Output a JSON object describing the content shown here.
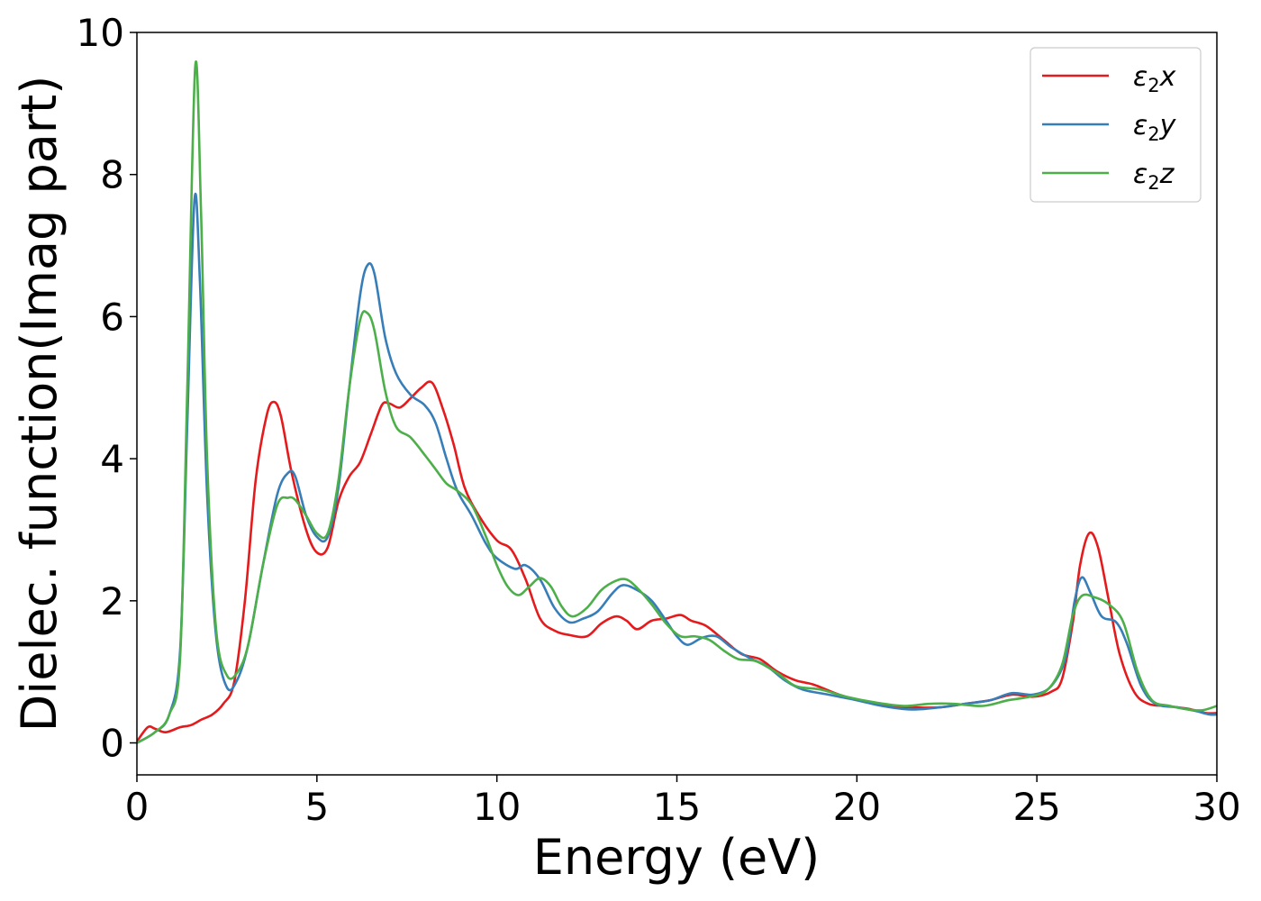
{
  "chart_data": {
    "type": "line",
    "xlabel": "Energy (eV)",
    "ylabel": "Dielec. function(Imag part)",
    "xlim": [
      0,
      30
    ],
    "ylim": [
      -0.45,
      10
    ],
    "xticks": [
      0,
      5,
      10,
      15,
      20,
      25,
      30
    ],
    "yticks": [
      0,
      2,
      4,
      6,
      8,
      10
    ],
    "grid": false,
    "legend_position": "top-right",
    "series": [
      {
        "name": "ε2x",
        "legend": {
          "base": "ε",
          "sub": "2",
          "suffix": "x"
        },
        "color": "#e41a1c",
        "points": [
          [
            0,
            0.02
          ],
          [
            0.3,
            0.22
          ],
          [
            0.5,
            0.2
          ],
          [
            0.8,
            0.15
          ],
          [
            1.2,
            0.22
          ],
          [
            1.5,
            0.25
          ],
          [
            1.8,
            0.33
          ],
          [
            2.1,
            0.4
          ],
          [
            2.4,
            0.55
          ],
          [
            2.7,
            0.85
          ],
          [
            3.0,
            2.0
          ],
          [
            3.3,
            3.7
          ],
          [
            3.6,
            4.6
          ],
          [
            3.8,
            4.8
          ],
          [
            4.0,
            4.6
          ],
          [
            4.3,
            3.8
          ],
          [
            4.7,
            3.0
          ],
          [
            5.0,
            2.68
          ],
          [
            5.3,
            2.75
          ],
          [
            5.6,
            3.4
          ],
          [
            5.9,
            3.75
          ],
          [
            6.2,
            3.95
          ],
          [
            6.5,
            4.35
          ],
          [
            6.8,
            4.75
          ],
          [
            7.0,
            4.78
          ],
          [
            7.3,
            4.72
          ],
          [
            7.6,
            4.85
          ],
          [
            7.9,
            5.0
          ],
          [
            8.2,
            5.07
          ],
          [
            8.5,
            4.7
          ],
          [
            8.8,
            4.2
          ],
          [
            9.1,
            3.6
          ],
          [
            9.5,
            3.2
          ],
          [
            10.0,
            2.85
          ],
          [
            10.4,
            2.72
          ],
          [
            10.8,
            2.3
          ],
          [
            11.2,
            1.75
          ],
          [
            11.6,
            1.58
          ],
          [
            12.0,
            1.52
          ],
          [
            12.5,
            1.5
          ],
          [
            12.9,
            1.68
          ],
          [
            13.3,
            1.78
          ],
          [
            13.6,
            1.72
          ],
          [
            13.9,
            1.6
          ],
          [
            14.3,
            1.72
          ],
          [
            14.7,
            1.75
          ],
          [
            15.1,
            1.8
          ],
          [
            15.4,
            1.72
          ],
          [
            15.8,
            1.65
          ],
          [
            16.3,
            1.45
          ],
          [
            16.8,
            1.25
          ],
          [
            17.3,
            1.18
          ],
          [
            17.8,
            1.0
          ],
          [
            18.3,
            0.88
          ],
          [
            18.8,
            0.82
          ],
          [
            19.5,
            0.68
          ],
          [
            20.2,
            0.58
          ],
          [
            21.0,
            0.52
          ],
          [
            21.5,
            0.5
          ],
          [
            22.3,
            0.5
          ],
          [
            23.0,
            0.55
          ],
          [
            23.7,
            0.6
          ],
          [
            24.3,
            0.68
          ],
          [
            24.9,
            0.65
          ],
          [
            25.4,
            0.72
          ],
          [
            25.7,
            0.9
          ],
          [
            26.0,
            1.7
          ],
          [
            26.2,
            2.5
          ],
          [
            26.45,
            2.95
          ],
          [
            26.7,
            2.75
          ],
          [
            27.0,
            2.0
          ],
          [
            27.3,
            1.25
          ],
          [
            27.7,
            0.72
          ],
          [
            28.1,
            0.55
          ],
          [
            28.6,
            0.52
          ],
          [
            29.2,
            0.48
          ],
          [
            29.7,
            0.42
          ],
          [
            30.0,
            0.42
          ]
        ]
      },
      {
        "name": "ε2y",
        "legend": {
          "base": "ε",
          "sub": "2",
          "suffix": "y"
        },
        "color": "#377eb8",
        "points": [
          [
            0,
            0.0
          ],
          [
            0.5,
            0.15
          ],
          [
            0.9,
            0.4
          ],
          [
            1.2,
            1.3
          ],
          [
            1.4,
            4.5
          ],
          [
            1.6,
            7.65
          ],
          [
            1.75,
            6.5
          ],
          [
            1.95,
            3.5
          ],
          [
            2.2,
            1.5
          ],
          [
            2.5,
            0.78
          ],
          [
            2.8,
            0.9
          ],
          [
            3.1,
            1.4
          ],
          [
            3.5,
            2.5
          ],
          [
            3.9,
            3.5
          ],
          [
            4.2,
            3.8
          ],
          [
            4.4,
            3.75
          ],
          [
            4.7,
            3.2
          ],
          [
            5.0,
            2.9
          ],
          [
            5.3,
            2.9
          ],
          [
            5.6,
            3.6
          ],
          [
            5.9,
            5.0
          ],
          [
            6.2,
            6.3
          ],
          [
            6.4,
            6.72
          ],
          [
            6.6,
            6.6
          ],
          [
            6.9,
            5.7
          ],
          [
            7.2,
            5.2
          ],
          [
            7.6,
            4.9
          ],
          [
            8.0,
            4.75
          ],
          [
            8.3,
            4.5
          ],
          [
            8.6,
            4.0
          ],
          [
            8.9,
            3.55
          ],
          [
            9.3,
            3.2
          ],
          [
            9.7,
            2.8
          ],
          [
            10.0,
            2.6
          ],
          [
            10.5,
            2.45
          ],
          [
            10.8,
            2.5
          ],
          [
            11.2,
            2.3
          ],
          [
            11.6,
            1.9
          ],
          [
            12.0,
            1.7
          ],
          [
            12.4,
            1.75
          ],
          [
            12.8,
            1.85
          ],
          [
            13.2,
            2.1
          ],
          [
            13.5,
            2.22
          ],
          [
            13.9,
            2.15
          ],
          [
            14.3,
            2.0
          ],
          [
            14.7,
            1.72
          ],
          [
            15.0,
            1.5
          ],
          [
            15.3,
            1.38
          ],
          [
            15.7,
            1.48
          ],
          [
            16.1,
            1.5
          ],
          [
            16.5,
            1.35
          ],
          [
            17.0,
            1.2
          ],
          [
            17.5,
            1.08
          ],
          [
            18.0,
            0.88
          ],
          [
            18.5,
            0.75
          ],
          [
            19.2,
            0.68
          ],
          [
            20.0,
            0.6
          ],
          [
            20.7,
            0.52
          ],
          [
            21.5,
            0.47
          ],
          [
            22.3,
            0.5
          ],
          [
            23.0,
            0.55
          ],
          [
            23.7,
            0.6
          ],
          [
            24.3,
            0.7
          ],
          [
            24.9,
            0.68
          ],
          [
            25.4,
            0.8
          ],
          [
            25.8,
            1.2
          ],
          [
            26.05,
            2.0
          ],
          [
            26.25,
            2.33
          ],
          [
            26.5,
            2.1
          ],
          [
            26.8,
            1.78
          ],
          [
            27.2,
            1.7
          ],
          [
            27.5,
            1.4
          ],
          [
            27.9,
            0.8
          ],
          [
            28.3,
            0.55
          ],
          [
            28.9,
            0.5
          ],
          [
            29.4,
            0.45
          ],
          [
            29.8,
            0.4
          ],
          [
            30.0,
            0.4
          ]
        ]
      },
      {
        "name": "ε2z",
        "legend": {
          "base": "ε",
          "sub": "2",
          "suffix": "z"
        },
        "color": "#4daf4a",
        "points": [
          [
            0,
            0.0
          ],
          [
            0.5,
            0.15
          ],
          [
            0.9,
            0.4
          ],
          [
            1.2,
            1.2
          ],
          [
            1.4,
            5.0
          ],
          [
            1.62,
            9.52
          ],
          [
            1.78,
            7.5
          ],
          [
            1.95,
            4.0
          ],
          [
            2.2,
            1.6
          ],
          [
            2.5,
            0.95
          ],
          [
            2.8,
            1.0
          ],
          [
            3.1,
            1.4
          ],
          [
            3.5,
            2.5
          ],
          [
            3.9,
            3.35
          ],
          [
            4.2,
            3.45
          ],
          [
            4.4,
            3.42
          ],
          [
            4.7,
            3.2
          ],
          [
            5.0,
            2.95
          ],
          [
            5.3,
            2.95
          ],
          [
            5.6,
            3.7
          ],
          [
            5.9,
            5.0
          ],
          [
            6.2,
            5.95
          ],
          [
            6.4,
            6.05
          ],
          [
            6.6,
            5.8
          ],
          [
            6.9,
            4.95
          ],
          [
            7.2,
            4.45
          ],
          [
            7.6,
            4.3
          ],
          [
            8.0,
            4.05
          ],
          [
            8.3,
            3.85
          ],
          [
            8.6,
            3.65
          ],
          [
            8.9,
            3.55
          ],
          [
            9.3,
            3.35
          ],
          [
            9.7,
            2.9
          ],
          [
            10.0,
            2.5
          ],
          [
            10.3,
            2.2
          ],
          [
            10.6,
            2.08
          ],
          [
            10.9,
            2.2
          ],
          [
            11.2,
            2.32
          ],
          [
            11.5,
            2.2
          ],
          [
            11.8,
            1.92
          ],
          [
            12.1,
            1.78
          ],
          [
            12.5,
            1.9
          ],
          [
            12.9,
            2.15
          ],
          [
            13.3,
            2.28
          ],
          [
            13.6,
            2.3
          ],
          [
            13.9,
            2.18
          ],
          [
            14.3,
            1.95
          ],
          [
            14.7,
            1.68
          ],
          [
            15.1,
            1.5
          ],
          [
            15.5,
            1.5
          ],
          [
            15.9,
            1.45
          ],
          [
            16.3,
            1.3
          ],
          [
            16.7,
            1.18
          ],
          [
            17.2,
            1.15
          ],
          [
            17.8,
            0.98
          ],
          [
            18.3,
            0.8
          ],
          [
            19.0,
            0.75
          ],
          [
            19.7,
            0.65
          ],
          [
            20.5,
            0.57
          ],
          [
            21.3,
            0.52
          ],
          [
            22.0,
            0.55
          ],
          [
            22.7,
            0.55
          ],
          [
            23.5,
            0.52
          ],
          [
            24.2,
            0.6
          ],
          [
            24.8,
            0.65
          ],
          [
            25.3,
            0.75
          ],
          [
            25.7,
            1.1
          ],
          [
            26.0,
            1.8
          ],
          [
            26.25,
            2.07
          ],
          [
            26.6,
            2.05
          ],
          [
            27.0,
            1.95
          ],
          [
            27.4,
            1.7
          ],
          [
            27.8,
            1.0
          ],
          [
            28.2,
            0.6
          ],
          [
            28.7,
            0.52
          ],
          [
            29.2,
            0.47
          ],
          [
            29.6,
            0.46
          ],
          [
            30.0,
            0.52
          ]
        ]
      }
    ]
  }
}
